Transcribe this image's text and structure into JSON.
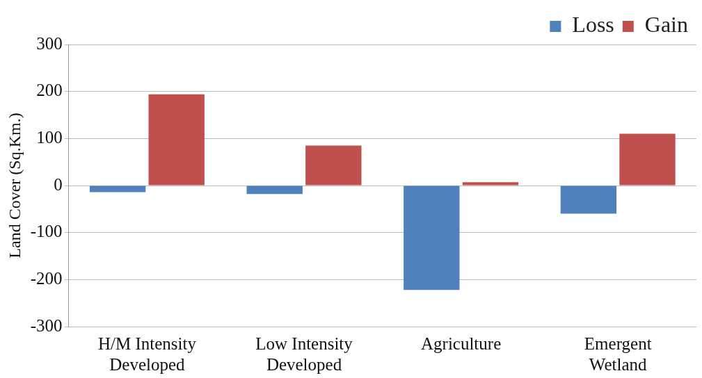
{
  "chart_data": {
    "type": "bar",
    "ylabel": "Land Cover (Sq.Km.)",
    "categories": [
      "H/M Intensity Developed",
      "Low Intensity Developed",
      "Agriculture",
      "Emergent Wetland"
    ],
    "series": [
      {
        "name": "Loss",
        "color": "#4f81bd",
        "values": [
          -14,
          -18,
          -222,
          -60
        ]
      },
      {
        "name": "Gain",
        "color": "#c0504d",
        "values": [
          194,
          85,
          7,
          110
        ]
      }
    ],
    "ylim": [
      -300,
      300
    ],
    "yticks": [
      -300,
      -200,
      -100,
      0,
      100,
      200,
      300
    ],
    "grid": "y",
    "legend": "top right"
  }
}
